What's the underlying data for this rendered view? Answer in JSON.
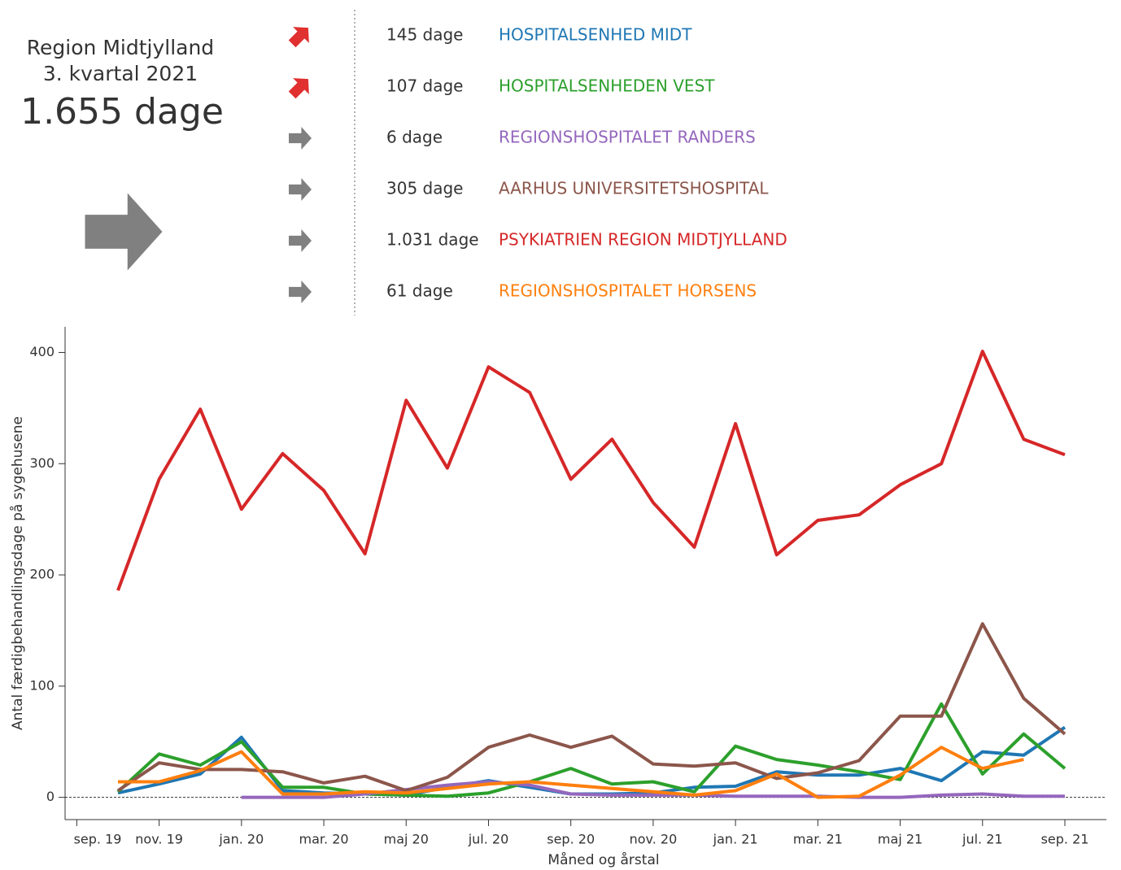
{
  "summary": {
    "region": "Region Midtjylland",
    "period": "3. kvartal 2021",
    "total": "1.655 dage",
    "trend": "flat"
  },
  "chart_data": {
    "type": "line",
    "x_label": "Måned og årstal",
    "y_label": "Antal færdigbehandlingsdage på sygehusene",
    "categories": [
      "sep. 19",
      null,
      "nov. 19",
      null,
      "jan. 20",
      null,
      "mar. 20",
      null,
      "maj 20",
      null,
      "jul. 20",
      null,
      "sep. 20",
      null,
      "nov. 20",
      null,
      "jan. 21",
      null,
      "mar. 21",
      null,
      "maj 21",
      null,
      "jul. 21",
      null,
      "sep. 21"
    ],
    "ylim": [
      -20,
      423
    ],
    "yticks": [
      0,
      100,
      200,
      300,
      400
    ],
    "zero_line": true,
    "series": [
      {
        "name": "HOSPITALSENHED MIDT",
        "color": "#1f77b4",
        "total_label": "145 dage",
        "trend": "up",
        "values": [
          null,
          4,
          12,
          21,
          54,
          6,
          4,
          3,
          2,
          9,
          15,
          9,
          3,
          3,
          4,
          9,
          10,
          23,
          20,
          20,
          26,
          15,
          41,
          38,
          63
        ]
      },
      {
        "name": "HOSPITALSENHEDEN VEST",
        "color": "#2ca02c",
        "total_label": "107 dage",
        "trend": "up",
        "values": [
          null,
          5,
          39,
          29,
          50,
          9,
          9,
          3,
          2,
          1,
          4,
          14,
          26,
          12,
          14,
          5,
          46,
          34,
          29,
          23,
          16,
          84,
          21,
          57,
          26
        ]
      },
      {
        "name": "REGIONSHOSPITALET RANDERS",
        "color": "#9467bd",
        "total_label": "6 dage",
        "trend": "flat",
        "values": [
          null,
          null,
          null,
          null,
          0,
          0,
          0,
          3,
          7,
          11,
          14,
          11,
          3,
          2,
          2,
          2,
          1,
          1,
          1,
          0,
          0,
          2,
          3,
          1,
          1
        ]
      },
      {
        "name": "AARHUS UNIVERSITETSHOSPITAL",
        "color": "#8c564b",
        "total_label": "305 dage",
        "trend": "flat",
        "values": [
          null,
          6,
          31,
          25,
          25,
          23,
          13,
          19,
          6,
          18,
          45,
          56,
          45,
          55,
          30,
          28,
          31,
          17,
          22,
          33,
          73,
          73,
          156,
          89,
          57
        ]
      },
      {
        "name": "PSYKIATRIEN REGION MIDTJYLLAND",
        "color": "#d62728",
        "total_label": "1.031 dage",
        "trend": "flat",
        "values": [
          null,
          186,
          286,
          349,
          259,
          309,
          276,
          219,
          357,
          296,
          387,
          364,
          286,
          322,
          265,
          225,
          336,
          218,
          249,
          254,
          281,
          300,
          401,
          322,
          308
        ]
      },
      {
        "name": "REGIONSHOSPITALET HORSENS",
        "color": "#ff7f0e",
        "total_label": "61 dage",
        "trend": "flat",
        "values": [
          null,
          14,
          14,
          24,
          41,
          3,
          3,
          5,
          4,
          8,
          12,
          14,
          11,
          8,
          5,
          2,
          6,
          21,
          0,
          1,
          20,
          45,
          26,
          34,
          null
        ]
      }
    ]
  }
}
